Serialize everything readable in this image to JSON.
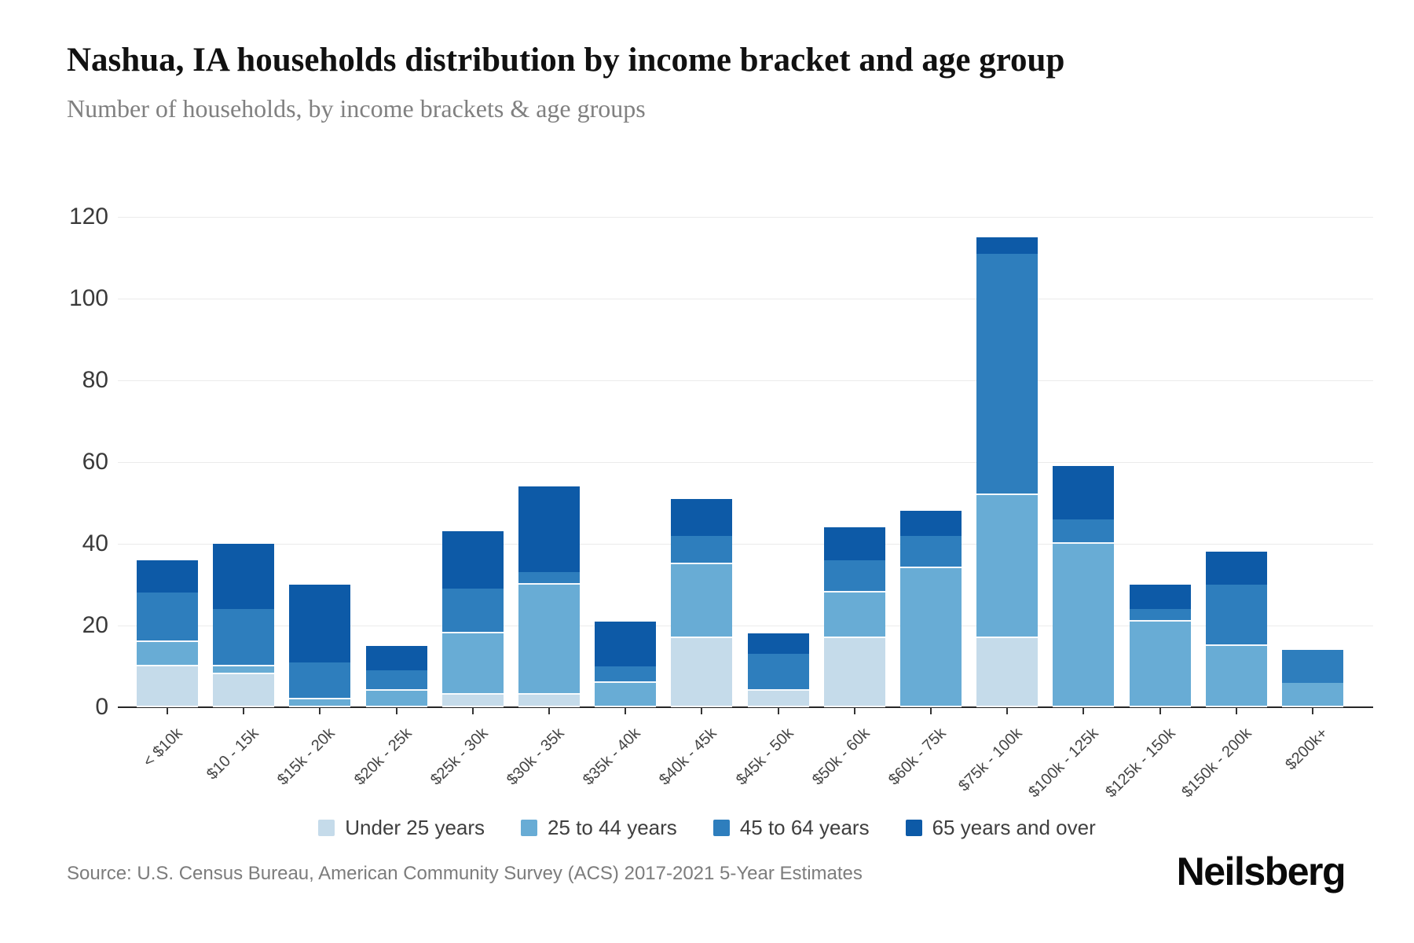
{
  "title": "Nashua, IA households distribution by income bracket and age group",
  "subtitle": "Number of households, by income brackets & age groups",
  "source": "Source: U.S. Census Bureau, American Community Survey (ACS) 2017-2021 5-Year Estimates",
  "logo": "Neilsberg",
  "colors": {
    "under_25": "#c5dbea",
    "25_to_44": "#68acd5",
    "45_to_64": "#2e7ebd",
    "65_and_over": "#0d5aa7",
    "gridline": "#ebebeb",
    "axis": "#262626"
  },
  "chart_data": {
    "type": "bar",
    "stacked": true,
    "title": "Nashua, IA households distribution by income bracket and age group",
    "subtitle": "Number of households, by income brackets & age groups",
    "xlabel": "",
    "ylabel": "Number of households",
    "ylim": [
      0,
      120
    ],
    "yticks": [
      0,
      20,
      40,
      60,
      80,
      100,
      120
    ],
    "grid": "horizontal",
    "legend_position": "bottom",
    "categories": [
      "< $10k",
      "$10 - 15k",
      "$15k - 20k",
      "$20k - 25k",
      "$25k - 30k",
      "$30k - 35k",
      "$35k - 40k",
      "$40k - 45k",
      "$45k - 50k",
      "$50k - 60k",
      "$60k - 75k",
      "$75k - 100k",
      "$100k - 125k",
      "$125k - 150k",
      "$150k - 200k",
      "$200k+"
    ],
    "series": [
      {
        "name": "Under 25 years",
        "color": "#c5dbea",
        "values": [
          10,
          8,
          0,
          0,
          3,
          3,
          0,
          17,
          4,
          17,
          0,
          17,
          0,
          0,
          0,
          0
        ]
      },
      {
        "name": "25 to 44 years",
        "color": "#68acd5",
        "values": [
          6,
          2,
          2,
          4,
          15,
          27,
          6,
          18,
          0,
          11,
          34,
          35,
          40,
          21,
          15,
          6
        ]
      },
      {
        "name": "45 to 64 years",
        "color": "#2e7ebd",
        "values": [
          12,
          14,
          9,
          5,
          11,
          3,
          4,
          7,
          9,
          8,
          8,
          59,
          6,
          3,
          15,
          8
        ]
      },
      {
        "name": "65 years and over",
        "color": "#0d5aa7",
        "values": [
          8,
          16,
          19,
          6,
          14,
          21,
          11,
          9,
          5,
          8,
          6,
          4,
          13,
          6,
          8,
          0
        ]
      }
    ],
    "totals": [
      36,
      40,
      30,
      15,
      43,
      54,
      21,
      51,
      18,
      44,
      48,
      115,
      59,
      30,
      38,
      14
    ]
  }
}
